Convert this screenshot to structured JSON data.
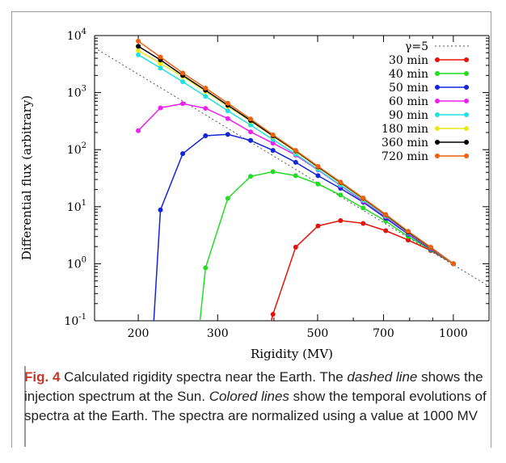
{
  "figure": {
    "label": "Fig. 4",
    "caption_parts": [
      {
        "text": " Calculated rigidity spectra near the Earth. The ",
        "style": "normal"
      },
      {
        "text": "dashed line",
        "style": "italic"
      },
      {
        "text": " shows the injection spectrum at the Sun. ",
        "style": "normal"
      },
      {
        "text": "Colored lines",
        "style": "italic"
      },
      {
        "text": " show the temporal evolutions of spectra at the Earth. The spectra are normalized using a value at 1000 MV",
        "style": "normal"
      }
    ]
  },
  "chart_data": {
    "type": "line",
    "xlabel": "Rigidity (MV)",
    "ylabel": "Differential flux (arbitrary)",
    "xscale": "log",
    "yscale": "log",
    "xlim": [
      160,
      1200
    ],
    "ylim": [
      0.1,
      10000
    ],
    "xticks": [
      200,
      300,
      500,
      700,
      1000
    ],
    "yticks": [
      {
        "value": 0.1,
        "base": "10",
        "exp": "-1"
      },
      {
        "value": 1,
        "base": "10",
        "exp": "0"
      },
      {
        "value": 10,
        "base": "10",
        "exp": "1"
      },
      {
        "value": 100,
        "base": "10",
        "exp": "2"
      },
      {
        "value": 1000,
        "base": "10",
        "exp": "3"
      },
      {
        "value": 10000,
        "base": "10",
        "exp": "4"
      }
    ],
    "legend_position": "top-right",
    "reference_line": {
      "name": "γ=5",
      "style": "dotted",
      "color": "#555555",
      "x": [
        160,
        1200
      ],
      "y": [
        6104,
        0.401
      ]
    },
    "x": [
      200,
      224,
      251,
      282,
      316,
      355,
      398,
      447,
      501,
      562,
      631,
      708,
      794,
      891,
      1000
    ],
    "series": [
      {
        "name": "30 min",
        "color": "#e8120c",
        "values": [
          null,
          null,
          null,
          null,
          null,
          null,
          0.13,
          1.95,
          4.6,
          5.7,
          5.1,
          3.8,
          2.6,
          1.7,
          1.0
        ]
      },
      {
        "name": "40 min",
        "color": "#22dd22",
        "values": [
          null,
          null,
          null,
          0.85,
          14,
          34,
          41,
          35,
          25,
          16,
          9.5,
          5.6,
          3.0,
          1.75,
          1.0
        ]
      },
      {
        "name": "50 min",
        "color": "#1424d8",
        "values": [
          null,
          8.8,
          85,
          175,
          185,
          145,
          97,
          60,
          35,
          21,
          12,
          6.3,
          3.3,
          1.8,
          1.0
        ]
      },
      {
        "name": "60 min",
        "color": "#ee22ee",
        "values": [
          215,
          540,
          640,
          530,
          350,
          205,
          130,
          80,
          44,
          23.5,
          12.5,
          6.7,
          3.4,
          1.85,
          1.0
        ]
      },
      {
        "name": "90 min",
        "color": "#22e0e0",
        "values": [
          4600,
          2700,
          1550,
          860,
          480,
          270,
          150,
          83,
          45,
          24,
          13,
          6.9,
          3.5,
          1.9,
          1.0
        ]
      },
      {
        "name": "180 min",
        "color": "#e8e81a",
        "values": [
          5500,
          3250,
          1900,
          1050,
          575,
          315,
          170,
          92,
          49,
          26,
          13.7,
          7.1,
          3.6,
          1.9,
          1.0
        ]
      },
      {
        "name": "360 min",
        "color": "#000000",
        "values": [
          6500,
          3750,
          2000,
          1100,
          600,
          325,
          175,
          95,
          50,
          26.5,
          14,
          7.2,
          3.6,
          1.92,
          1.0
        ]
      },
      {
        "name": "720 min",
        "color": "#f06010",
        "values": [
          8000,
          4200,
          2200,
          1200,
          650,
          345,
          182,
          97,
          51,
          27,
          14.2,
          7.3,
          3.7,
          1.95,
          1.0
        ]
      }
    ]
  }
}
